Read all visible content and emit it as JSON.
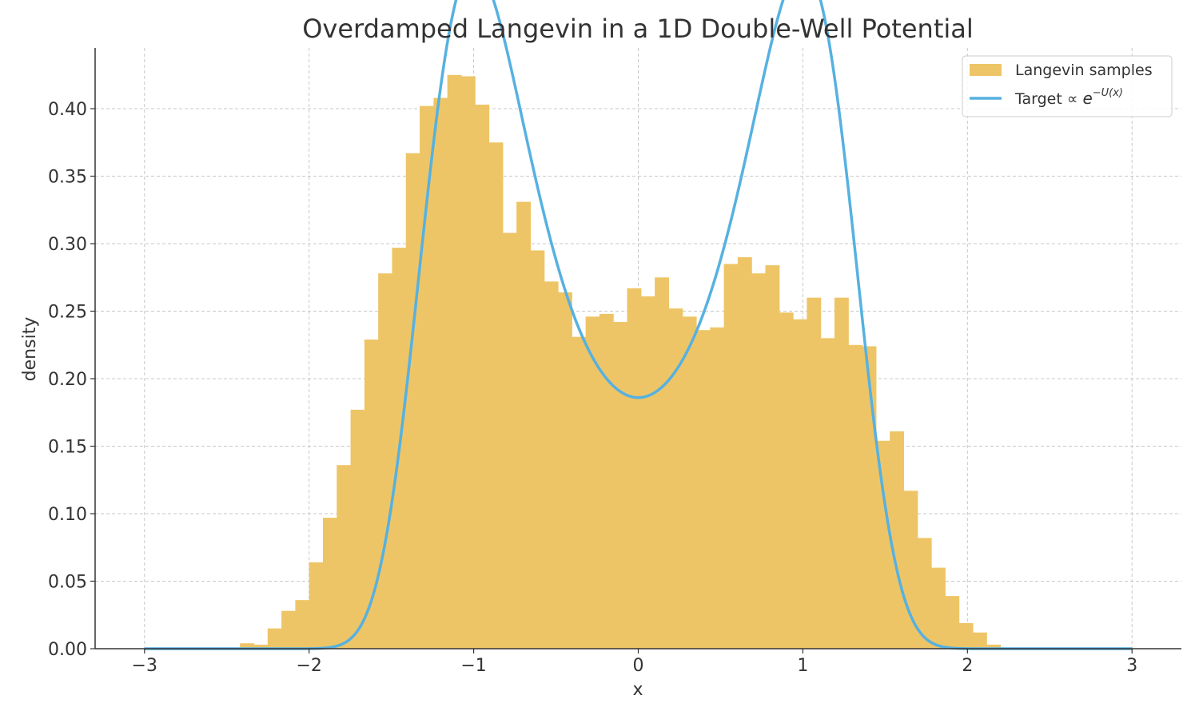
{
  "chart_data": {
    "type": "bar",
    "title": "Overdamped Langevin in a 1D Double-Well Potential",
    "xlabel": "x",
    "ylabel": "density",
    "xlim": [
      -3.3,
      3.3
    ],
    "ylim": [
      0,
      0.445
    ],
    "xticks": [
      -3,
      -2,
      -1,
      0,
      1,
      2,
      3
    ],
    "xtick_labels": [
      "−3",
      "−2",
      "−1",
      "0",
      "1",
      "2",
      "3"
    ],
    "yticks": [
      0,
      0.05,
      0.1,
      0.15,
      0.2,
      0.25,
      0.3,
      0.35,
      0.4
    ],
    "ytick_labels": [
      "0.00",
      "0.05",
      "0.10",
      "0.15",
      "0.20",
      "0.25",
      "0.30",
      "0.35",
      "0.40"
    ],
    "grid": true,
    "legend_position": "top-right",
    "colors": {
      "histogram": "#EEC566",
      "target": "#56B1E1",
      "text": "#333333",
      "grid": "#c8c8c8"
    },
    "histogram": {
      "name": "Langevin samples",
      "bin_edges": [
        -2.42,
        -2.336,
        -2.252,
        -2.168,
        -2.084,
        -2.0,
        -1.916,
        -1.832,
        -1.748,
        -1.664,
        -1.58,
        -1.496,
        -1.412,
        -1.328,
        -1.244,
        -1.16,
        -1.076,
        -0.992,
        -0.908,
        -0.824,
        -0.74,
        -0.656,
        -0.572,
        -0.488,
        -0.404,
        -0.32,
        -0.236,
        -0.152,
        -0.068,
        0.016,
        0.1,
        0.184,
        0.268,
        0.352,
        0.436,
        0.52,
        0.604,
        0.688,
        0.772,
        0.856,
        0.94,
        1.024,
        1.108,
        1.192,
        1.276,
        1.36,
        1.444,
        1.528,
        1.612,
        1.696,
        1.78,
        1.864,
        1.948,
        2.032,
        2.116,
        2.2
      ],
      "values": [
        0.004,
        0.003,
        0.015,
        0.028,
        0.036,
        0.064,
        0.097,
        0.136,
        0.177,
        0.229,
        0.278,
        0.297,
        0.367,
        0.402,
        0.408,
        0.425,
        0.424,
        0.403,
        0.375,
        0.308,
        0.331,
        0.295,
        0.272,
        0.264,
        0.231,
        0.246,
        0.248,
        0.242,
        0.267,
        0.261,
        0.275,
        0.252,
        0.246,
        0.236,
        0.238,
        0.285,
        0.29,
        0.278,
        0.284,
        0.249,
        0.244,
        0.26,
        0.23,
        0.26,
        0.225,
        0.224,
        0.154,
        0.161,
        0.117,
        0.082,
        0.06,
        0.039,
        0.019,
        0.012,
        0.003
      ]
    },
    "series": [
      {
        "name": "Target ∝ e^{−U(x)}",
        "function": "exp(-(x^2-1)^2)/Z",
        "normalization": 1.9777
      }
    ],
    "legend": {
      "hist_label": "Langevin samples",
      "target_prefix": "Target ∝ ",
      "target_base": "e",
      "target_superscript": "−U(x)"
    }
  }
}
